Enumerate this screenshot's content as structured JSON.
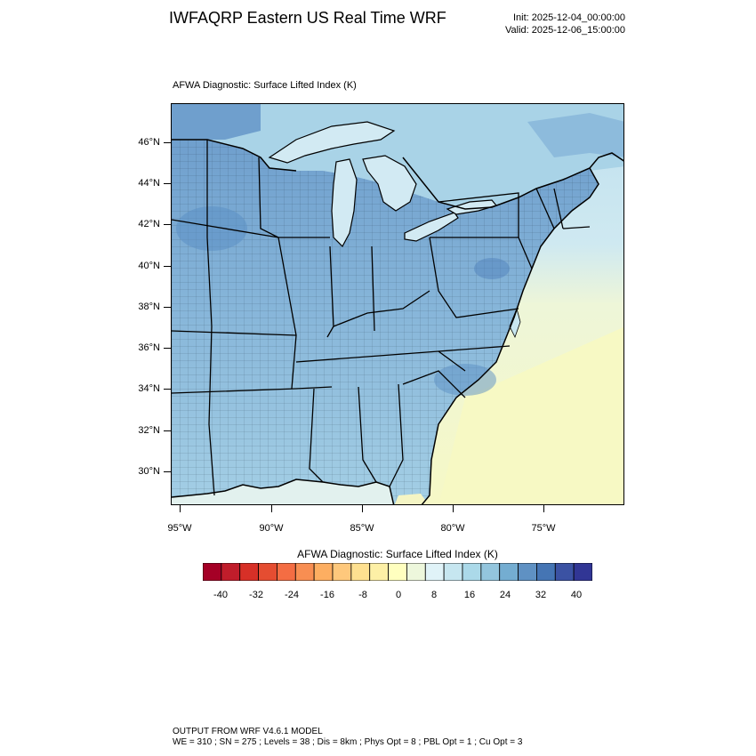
{
  "header": {
    "title": "IWFAQRP Eastern US Real Time WRF",
    "init": "Init: 2025-12-04_00:00:00",
    "valid": "Valid: 2025-12-06_15:00:00"
  },
  "map": {
    "title": "AFWA Diagnostic: Surface Lifted Index   (K)",
    "field": "Surface Lifted Index",
    "units": "K",
    "lat_labels": [
      "46°N",
      "44°N",
      "42°N",
      "40°N",
      "38°N",
      "36°N",
      "34°N",
      "32°N",
      "30°N"
    ],
    "lon_labels": [
      "95°W",
      "90°W",
      "85°W",
      "80°W",
      "75°W"
    ],
    "extent": {
      "west": "95.5°W",
      "east": "70.5°W",
      "south": "28.3°N",
      "north": "47.7°N"
    },
    "colors": {
      "land_stable": "#6a9fcf",
      "land_moderate": "#9ccbe4",
      "ocean_north": "#c1e2ef",
      "ocean_south": "#f4f8c8",
      "boundaries": "#000000"
    }
  },
  "colorbar": {
    "title": "AFWA Diagnostic: Surface Lifted Index  (K)",
    "labels": [
      "-40",
      "-32",
      "-24",
      "-16",
      "-8",
      "0",
      "8",
      "16",
      "24",
      "32",
      "40"
    ],
    "colors": [
      "#a50026",
      "#c01d2b",
      "#d73027",
      "#e54d31",
      "#f46d43",
      "#f88e52",
      "#fdae61",
      "#fec87c",
      "#fee090",
      "#fdf0a6",
      "#ffffbf",
      "#edf7dc",
      "#e0f3f8",
      "#c6e6f0",
      "#abd9e9",
      "#93c5dd",
      "#74add1",
      "#5f91c3",
      "#4575b4",
      "#3b52a3",
      "#313695"
    ]
  },
  "footer": {
    "line1": "OUTPUT FROM WRF V4.6.1 MODEL",
    "line2": "WE = 310 ; SN = 275 ; Levels = 38 ; Dis = 8km ; Phys Opt = 8 ; PBL Opt = 1 ; Cu Opt = 3"
  }
}
